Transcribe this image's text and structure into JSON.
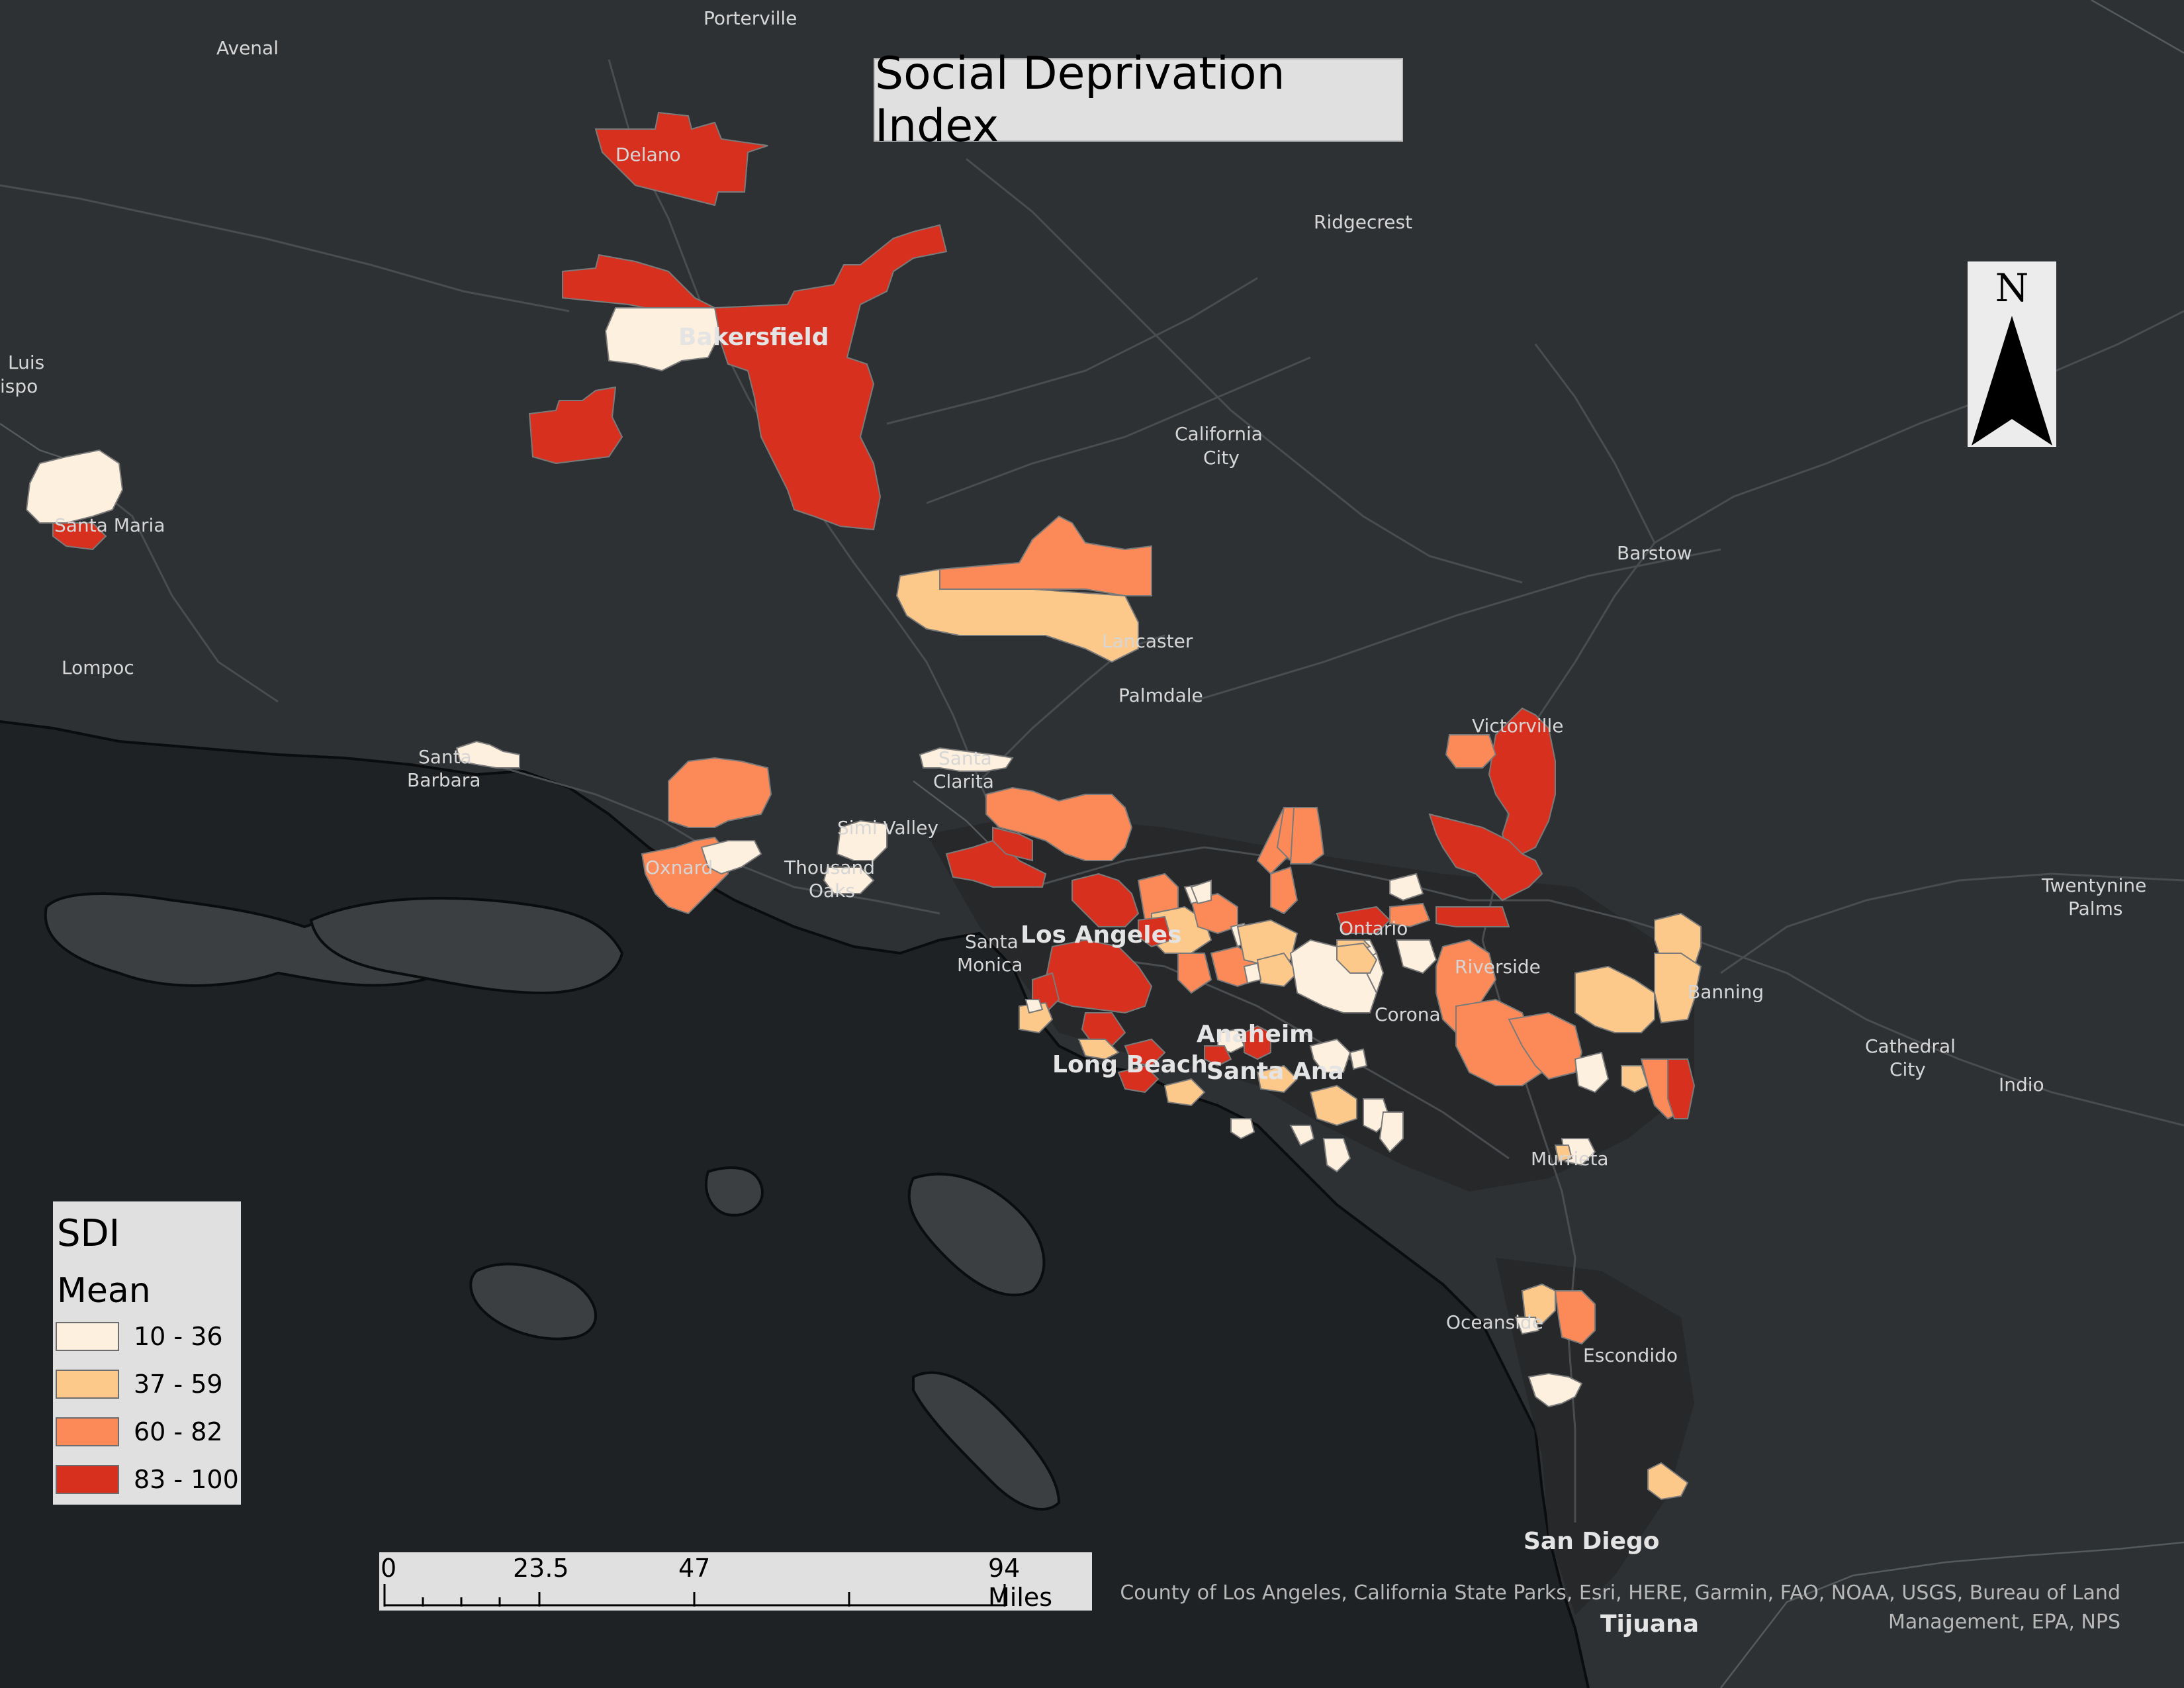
{
  "title": "Social Deprivation Index",
  "legend": {
    "title": "SDI",
    "subtitle": "Mean",
    "classes": [
      {
        "label": "10 - 36",
        "color": "#fef0de"
      },
      {
        "label": "37 - 59",
        "color": "#fdc98a"
      },
      {
        "label": "60 - 82",
        "color": "#fb8a58"
      },
      {
        "label": "83 - 100",
        "color": "#d7301f"
      }
    ]
  },
  "north_arrow": {
    "label": "N"
  },
  "scale_bar": {
    "labels": [
      "0",
      "23.5",
      "47",
      "94 Miles"
    ],
    "values": [
      0,
      23.5,
      47,
      94
    ],
    "unit": "Miles"
  },
  "attribution": {
    "line1": "County of Los Angeles, California State Parks, Esri, HERE, Garmin, FAO, NOAA, USGS, Bureau of Land",
    "line2": "Management, EPA, NPS"
  },
  "places": {
    "porterville": "Porterville",
    "avenal": "Avenal",
    "delano": "Delano",
    "ridgecrest": "Ridgecrest",
    "luis1": "Luis",
    "luis2": "ispo",
    "bakersfield": "Bakersfield",
    "california_city1": "California",
    "california_city2": "City",
    "santa_maria": "Santa Maria",
    "barstow": "Barstow",
    "lompoc": "Lompoc",
    "lancaster": "Lancaster",
    "palmdale": "Palmdale",
    "victorville": "Victorville",
    "santa_barbara1": "Santa",
    "santa_barbara2": "Barbara",
    "santa_clarita1": "Santa",
    "santa_clarita2": "Clarita",
    "simi_valley": "Simi Valley",
    "oxnard": "Oxnard",
    "thousand_oaks1": "Thousand",
    "thousand_oaks2": "Oaks",
    "twentynine_palms1": "Twentynine",
    "twentynine_palms2": "Palms",
    "los_angeles": "Los Angeles",
    "ontario": "Ontario",
    "santa_monica1": "Santa",
    "santa_monica2": "Monica",
    "riverside": "Riverside",
    "banning": "Banning",
    "corona": "Corona",
    "anaheim": "Anaheim",
    "cathedral_city1": "Cathedral",
    "cathedral_city2": "City",
    "indio": "Indio",
    "long_beach": "Long Beach",
    "santa_ana": "Santa Ana",
    "murrieta": "Murrieta",
    "oceanside": "Oceanside",
    "escondido": "Escondido",
    "san_diego": "San Diego",
    "tijuana": "Tijuana"
  }
}
